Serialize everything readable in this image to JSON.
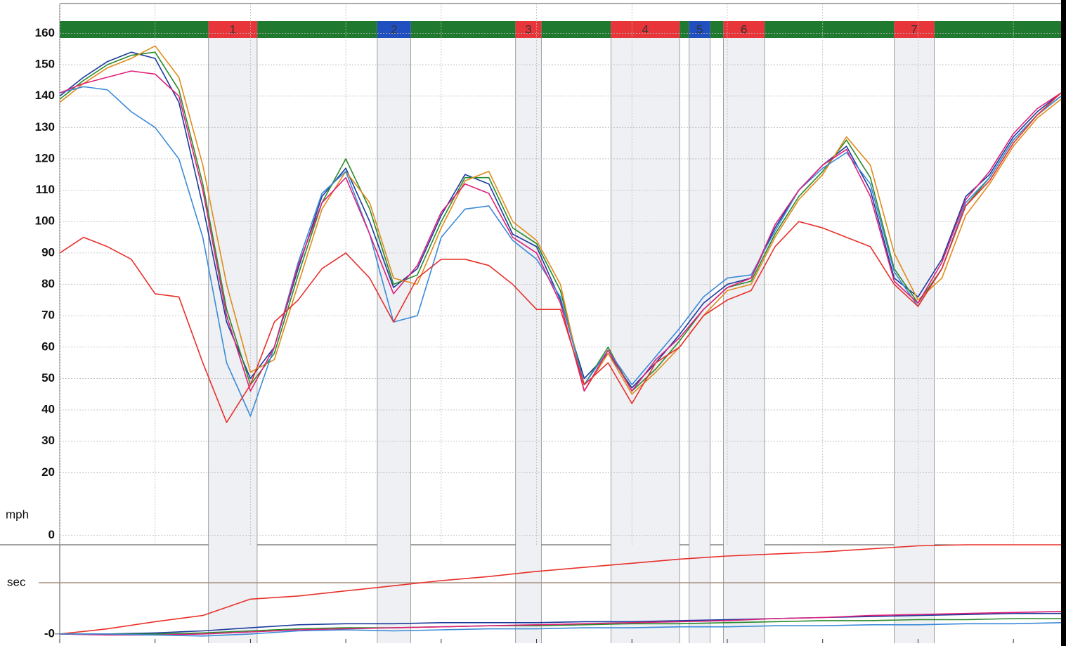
{
  "chart_data": [
    {
      "type": "line",
      "y_label": "mph",
      "x": [
        0,
        0.25,
        0.5,
        0.75,
        1,
        1.25,
        1.5,
        1.75,
        2,
        2.25,
        2.5,
        2.75,
        3,
        3.25,
        3.5,
        3.75,
        4,
        4.25,
        4.5,
        4.75,
        5,
        5.25,
        5.5,
        5.75,
        6,
        6.25,
        6.5,
        6.75,
        7,
        7.25,
        7.5,
        7.75,
        8,
        8.25,
        8.5,
        8.75,
        9,
        9.25,
        9.5,
        9.75,
        10,
        10.25,
        10.5
      ],
      "xlim": [
        0,
        10.5
      ],
      "xticks": [
        0,
        1,
        2,
        3,
        4,
        5,
        6,
        7,
        8,
        9,
        10
      ],
      "ylim": [
        -3,
        169.5
      ],
      "yticks": [
        0,
        20,
        30,
        40,
        50,
        60,
        70,
        80,
        90,
        100,
        110,
        120,
        130,
        140,
        150,
        160
      ],
      "grid": true,
      "band_color": "#1f7a30",
      "sectors": [
        {
          "label": "1",
          "color": "#e8353a",
          "x": [
            1.56,
            2.07
          ]
        },
        {
          "label": "2",
          "color": "#2050c0",
          "x": [
            3.33,
            3.68
          ]
        },
        {
          "label": "3",
          "color": "#e8353a",
          "x": [
            4.78,
            5.05
          ]
        },
        {
          "label": "4",
          "color": "#e8353a",
          "x": [
            5.78,
            6.5
          ]
        },
        {
          "label": "5",
          "color": "#2050c0",
          "x": [
            6.6,
            6.82
          ]
        },
        {
          "label": "6",
          "color": "#e8353a",
          "x": [
            6.96,
            7.39
          ]
        },
        {
          "label": "7",
          "color": "#e8353a",
          "x": [
            8.75,
            9.17
          ]
        }
      ],
      "series": [
        {
          "color": "#1a3a9c",
          "values": [
            140,
            146,
            151,
            154,
            152,
            138,
            105,
            68,
            50,
            60,
            85,
            108,
            117,
            100,
            79,
            85,
            102,
            115,
            112,
            96,
            92,
            75,
            50,
            58,
            47,
            55,
            64,
            74,
            80,
            82,
            98,
            110,
            118,
            124,
            110,
            82,
            76,
            88,
            108,
            115,
            127,
            135,
            141
          ]
        },
        {
          "color": "#2a8a2a",
          "values": [
            139,
            145,
            150,
            153,
            154,
            142,
            112,
            72,
            48,
            58,
            83,
            106,
            120,
            104,
            80,
            83,
            100,
            114,
            114,
            98,
            93,
            78,
            48,
            60,
            46,
            53,
            62,
            72,
            79,
            81,
            96,
            108,
            116,
            126,
            114,
            85,
            74,
            85,
            105,
            114,
            126,
            134,
            140
          ]
        },
        {
          "color": "#e08a1a",
          "values": [
            138,
            144,
            149,
            152,
            156,
            146,
            118,
            80,
            52,
            56,
            80,
            104,
            116,
            106,
            82,
            80,
            98,
            113,
            116,
            100,
            94,
            80,
            46,
            58,
            45,
            52,
            60,
            70,
            78,
            80,
            95,
            107,
            115,
            127,
            118,
            90,
            75,
            82,
            102,
            112,
            124,
            133,
            139
          ]
        },
        {
          "color": "#3a8ad8",
          "values": [
            141,
            143,
            142,
            135,
            130,
            120,
            95,
            55,
            38,
            60,
            87,
            109,
            116,
            96,
            68,
            70,
            95,
            104,
            105,
            94,
            88,
            76,
            48,
            59,
            48,
            57,
            66,
            76,
            82,
            83,
            97,
            110,
            117,
            122,
            112,
            84,
            73,
            85,
            106,
            114,
            126,
            134,
            140
          ]
        },
        {
          "color": "#e0207a",
          "values": [
            141,
            144,
            146,
            148,
            147,
            140,
            110,
            70,
            46,
            60,
            86,
            106,
            114,
            96,
            77,
            86,
            103,
            112,
            109,
            95,
            90,
            74,
            46,
            59,
            46,
            56,
            63,
            72,
            79,
            82,
            99,
            110,
            118,
            123,
            108,
            81,
            74,
            87,
            107,
            116,
            128,
            136,
            141
          ]
        },
        {
          "color": "#e8302a",
          "values": [
            90,
            95,
            92,
            88,
            77,
            76,
            55,
            36,
            48,
            68,
            75,
            85,
            90,
            82,
            68,
            82,
            88,
            88,
            86,
            80,
            72,
            72,
            48,
            55,
            42,
            55,
            60,
            70,
            75,
            78,
            92,
            100,
            98,
            95,
            92,
            80,
            73,
            85,
            105,
            113,
            125,
            134,
            141
          ]
        }
      ]
    },
    {
      "type": "line",
      "y_label": "sec",
      "x": [
        0,
        0.5,
        1,
        1.5,
        2,
        2.5,
        3,
        3.5,
        4,
        4.5,
        5,
        5.5,
        6,
        6.5,
        7,
        7.5,
        8,
        8.5,
        9,
        9.5,
        10,
        10.5
      ],
      "xlim": [
        0,
        10.5
      ],
      "xticks": [
        0,
        1,
        2,
        3,
        4,
        5,
        6,
        7,
        8,
        9,
        10
      ],
      "ylim": [
        -0.9,
        8.7
      ],
      "yticks": [
        {
          "value": 0,
          "label": "-0"
        }
      ],
      "reference_line": 5,
      "series": [
        {
          "color": "#e8302a",
          "values": [
            0,
            0.5,
            1.2,
            1.8,
            3.4,
            3.7,
            4.2,
            4.7,
            5.2,
            5.6,
            6.1,
            6.5,
            6.9,
            7.3,
            7.6,
            7.8,
            8.0,
            8.3,
            8.6,
            8.7,
            8.7,
            8.7
          ]
        },
        {
          "color": "#1a3a9c",
          "values": [
            0,
            0,
            0.1,
            0.3,
            0.6,
            0.9,
            1.0,
            1.0,
            1.1,
            1.1,
            1.1,
            1.2,
            1.2,
            1.3,
            1.4,
            1.5,
            1.6,
            1.7,
            1.8,
            1.9,
            2.0,
            2.0
          ]
        },
        {
          "color": "#2a8a2a",
          "values": [
            0,
            0,
            0,
            0.1,
            0.3,
            0.5,
            0.6,
            0.6,
            0.7,
            0.8,
            0.8,
            0.9,
            1.0,
            1.0,
            1.1,
            1.2,
            1.3,
            1.3,
            1.4,
            1.4,
            1.5,
            1.5
          ]
        },
        {
          "color": "#e0207a",
          "values": [
            0,
            -0.1,
            -0.1,
            0,
            0.2,
            0.4,
            0.5,
            0.6,
            0.7,
            0.8,
            0.9,
            1.0,
            1.1,
            1.2,
            1.3,
            1.5,
            1.6,
            1.8,
            1.9,
            2.0,
            2.1,
            2.2
          ]
        },
        {
          "color": "#3a8ad8",
          "values": [
            0,
            0,
            -0.1,
            -0.2,
            0,
            0.3,
            0.4,
            0.3,
            0.4,
            0.5,
            0.5,
            0.6,
            0.6,
            0.7,
            0.7,
            0.8,
            0.8,
            0.9,
            0.9,
            1.0,
            1.0,
            1.1
          ]
        }
      ]
    }
  ]
}
